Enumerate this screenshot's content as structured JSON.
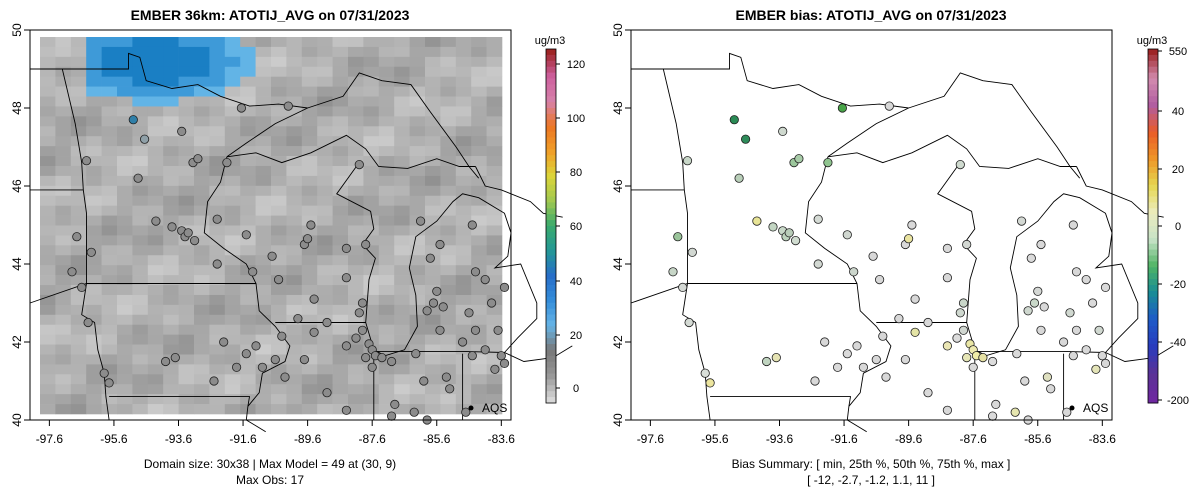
{
  "charts": [
    {
      "title": "EMBER 36km: ATOTIJ_AVG on 07/31/2023",
      "colorbar_label": "ug/m3",
      "colorbar_ticks": [
        "120",
        "100",
        "80",
        "60",
        "40",
        "20",
        "0"
      ],
      "obs_legend": "AQS",
      "footer_line1": "Domain size: 30x38 | Max Model = 49 at (30, 9)",
      "footer_line2": "Max Obs: 17"
    },
    {
      "title": "EMBER bias: ATOTIJ_AVG on 07/31/2023",
      "colorbar_label": "ug/m3",
      "colorbar_ticks": [
        "550",
        "40",
        "20",
        "0",
        "-20",
        "-40",
        "-200"
      ],
      "obs_legend": "AQS",
      "footer_line1": "Bias Summary: [ min, 25th %, 50th %, 75th %, max ]",
      "footer_line2": "[ -12,   -2.7,   -1.2,   1.1,   11 ]"
    }
  ],
  "chart_data": [
    {
      "type": "heatmap",
      "title": "EMBER 36km: ATOTIJ_AVG on 07/31/2023",
      "x_ticks": [
        "-97.6",
        "-95.6",
        "-93.6",
        "-91.6",
        "-89.6",
        "-87.6",
        "-85.6",
        "-83.6"
      ],
      "y_ticks": [
        "40",
        "42",
        "44",
        "46",
        "48",
        "50"
      ],
      "xlim": [
        -98.2,
        -83.3
      ],
      "ylim": [
        40,
        50
      ],
      "colorbar": {
        "unit": "ug/m3",
        "range": [
          -8,
          127
        ],
        "ticks": [
          0,
          20,
          40,
          60,
          80,
          100,
          120
        ]
      },
      "domain_size": "30x38",
      "max_model": 49,
      "max_obs": 17,
      "legend": [
        {
          "symbol": "point",
          "label": "AQS"
        }
      ]
    },
    {
      "type": "scatter",
      "title": "EMBER bias: ATOTIJ_AVG on 07/31/2023",
      "x_ticks": [
        "-97.6",
        "-95.6",
        "-93.6",
        "-91.6",
        "-89.6",
        "-87.6",
        "-85.6",
        "-83.6"
      ],
      "y_ticks": [
        "40",
        "42",
        "44",
        "46",
        "48",
        "50"
      ],
      "xlim": [
        -98.2,
        -83.3
      ],
      "ylim": [
        40,
        50
      ],
      "colorbar": {
        "unit": "ug/m3",
        "ticks": [
          550,
          40,
          20,
          0,
          -20,
          -40,
          -200
        ]
      },
      "bias_summary": {
        "min": -12,
        "p25": -2.7,
        "p50": -1.2,
        "p75": 1.1,
        "max": 11
      },
      "legend": [
        {
          "symbol": "point",
          "label": "AQS"
        }
      ]
    }
  ]
}
